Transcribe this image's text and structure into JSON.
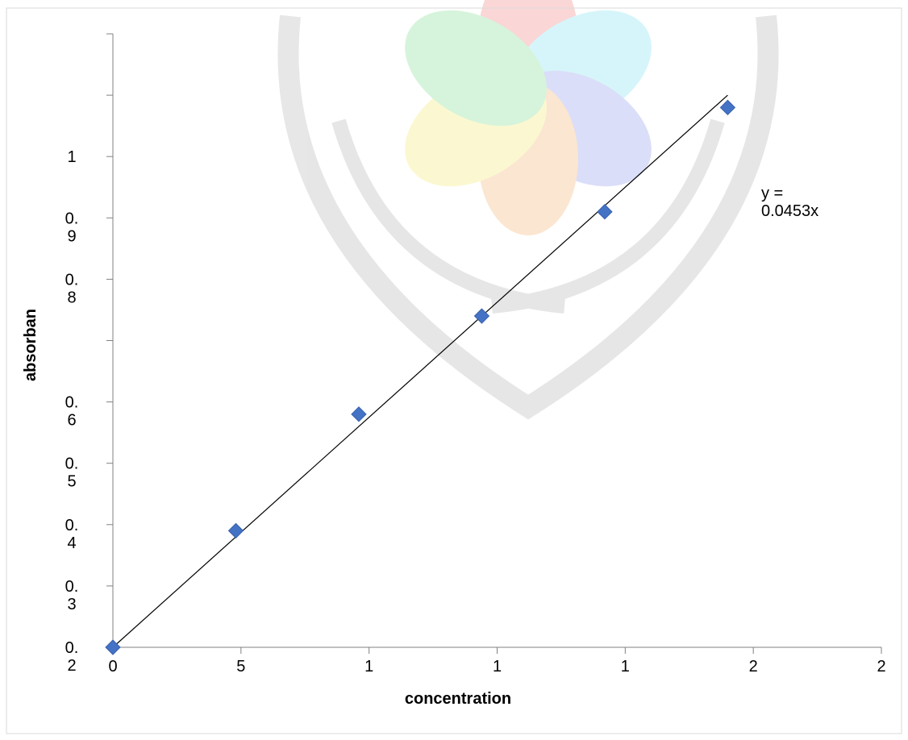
{
  "chart_data": {
    "type": "scatter",
    "xlabel": "concentration",
    "ylabel": "absorban",
    "x_tick_labels": [
      "0",
      "5",
      "1",
      "1",
      "1",
      "2",
      "2"
    ],
    "y_tick_labels": [
      {
        "value": 0.2,
        "lines": [
          "0.",
          "2"
        ]
      },
      {
        "value": 0.3,
        "lines": [
          "0.",
          "3"
        ]
      },
      {
        "value": 0.4,
        "lines": [
          "0.",
          "4"
        ]
      },
      {
        "value": 0.5,
        "lines": [
          "0.",
          "5"
        ]
      },
      {
        "value": 0.6,
        "lines": [
          "0.",
          "6"
        ]
      },
      {
        "value": 0.8,
        "lines": [
          "0.",
          "8"
        ]
      },
      {
        "value": 0.9,
        "lines": [
          "0.",
          "9"
        ]
      },
      {
        "value": 1.0,
        "lines": [
          "1"
        ]
      }
    ],
    "points": [
      {
        "x": 0,
        "y": 0.2
      },
      {
        "x": 4,
        "y": 0.39
      },
      {
        "x": 8,
        "y": 0.58
      },
      {
        "x": 12,
        "y": 0.74
      },
      {
        "x": 16,
        "y": 0.91
      },
      {
        "x": 20,
        "y": 1.08
      }
    ],
    "trendline": {
      "x": [
        0,
        20
      ],
      "y": [
        0.2,
        1.1
      ]
    },
    "equation_lines": [
      "y =",
      "0.0453x"
    ],
    "xlim": [
      0,
      25
    ],
    "ylim": [
      0.2,
      1.2
    ],
    "grid": false,
    "marker_color": "#4472C4",
    "line_color": "#000000"
  }
}
